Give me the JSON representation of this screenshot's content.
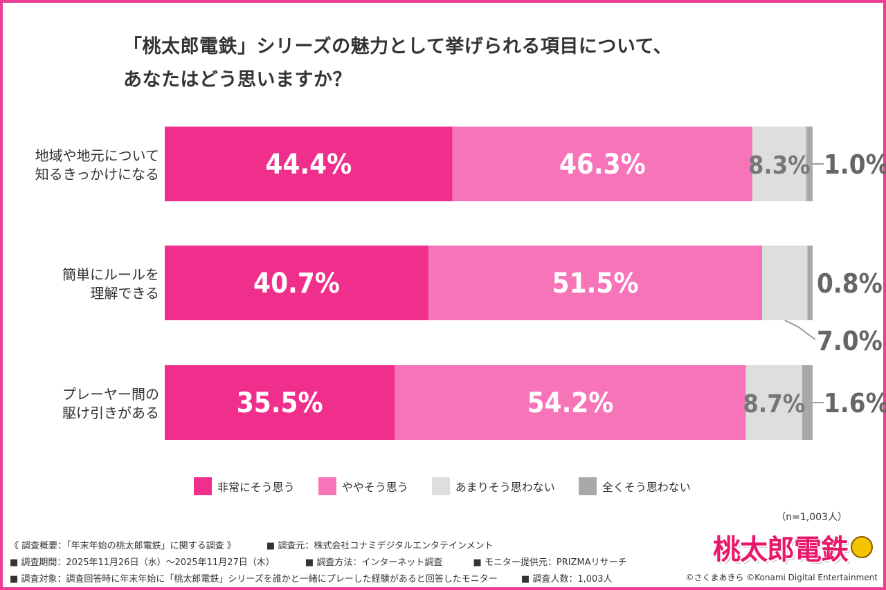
{
  "title": "「桃太郎電鉄」シリーズの魅力として挙げられる項目について、\nあなたはどう思いますか？",
  "chart_data": {
    "type": "bar",
    "orientation": "horizontal-stacked",
    "categories": [
      "地域や地元について\n知るきっかけになる",
      "簡単にルールを\n理解できる",
      "プレーヤー間の\n駆け引きがある"
    ],
    "series": [
      {
        "name": "非常にそう思う",
        "color": "#f02f8d",
        "values": [
          44.4,
          40.7,
          35.5
        ],
        "labels": [
          "44.4%",
          "40.7%",
          "35.5%"
        ]
      },
      {
        "name": "ややそう思う",
        "color": "#f774b8",
        "values": [
          46.3,
          51.5,
          54.2
        ],
        "labels": [
          "46.3%",
          "51.5%",
          "54.2%"
        ]
      },
      {
        "name": "あまりそう思わない",
        "color": "#dedede",
        "values": [
          8.3,
          7.0,
          8.7
        ],
        "labels": [
          "8.3%",
          "7.0%",
          "8.7%"
        ]
      },
      {
        "name": "全くそう思わない",
        "color": "#a9a9a9",
        "values": [
          1.0,
          0.8,
          1.6
        ],
        "labels": [
          "1.0%",
          "0.8%",
          "1.6%"
        ]
      }
    ],
    "xlim": [
      0,
      100
    ],
    "legend": "bottom"
  },
  "n_label": "（n=1,003人）",
  "footer": {
    "line1": [
      "《 調査概要：「年末年始の桃太郎電鉄」に関する調査 》",
      "■ 調査元：株式会社コナミデジタルエンタテインメント"
    ],
    "line2": [
      "■ 調査期間：2025年11月26日（水）～2025年11月27日（木）",
      "■ 調査方法：インターネット調査",
      "■ モニター提供元：PRIZMAリサーチ"
    ],
    "line3": [
      "■ 調査対象：調査回答時に年末年始に「桃太郎電鉄」シリーズを誰かと一緒にプレーした経験があると回答したモニター",
      "■ 調査人数：1,003人"
    ]
  },
  "logo_text": "桃太郎電鉄",
  "copyright": "©さくまあきら ©Konami Digital Entertainment"
}
